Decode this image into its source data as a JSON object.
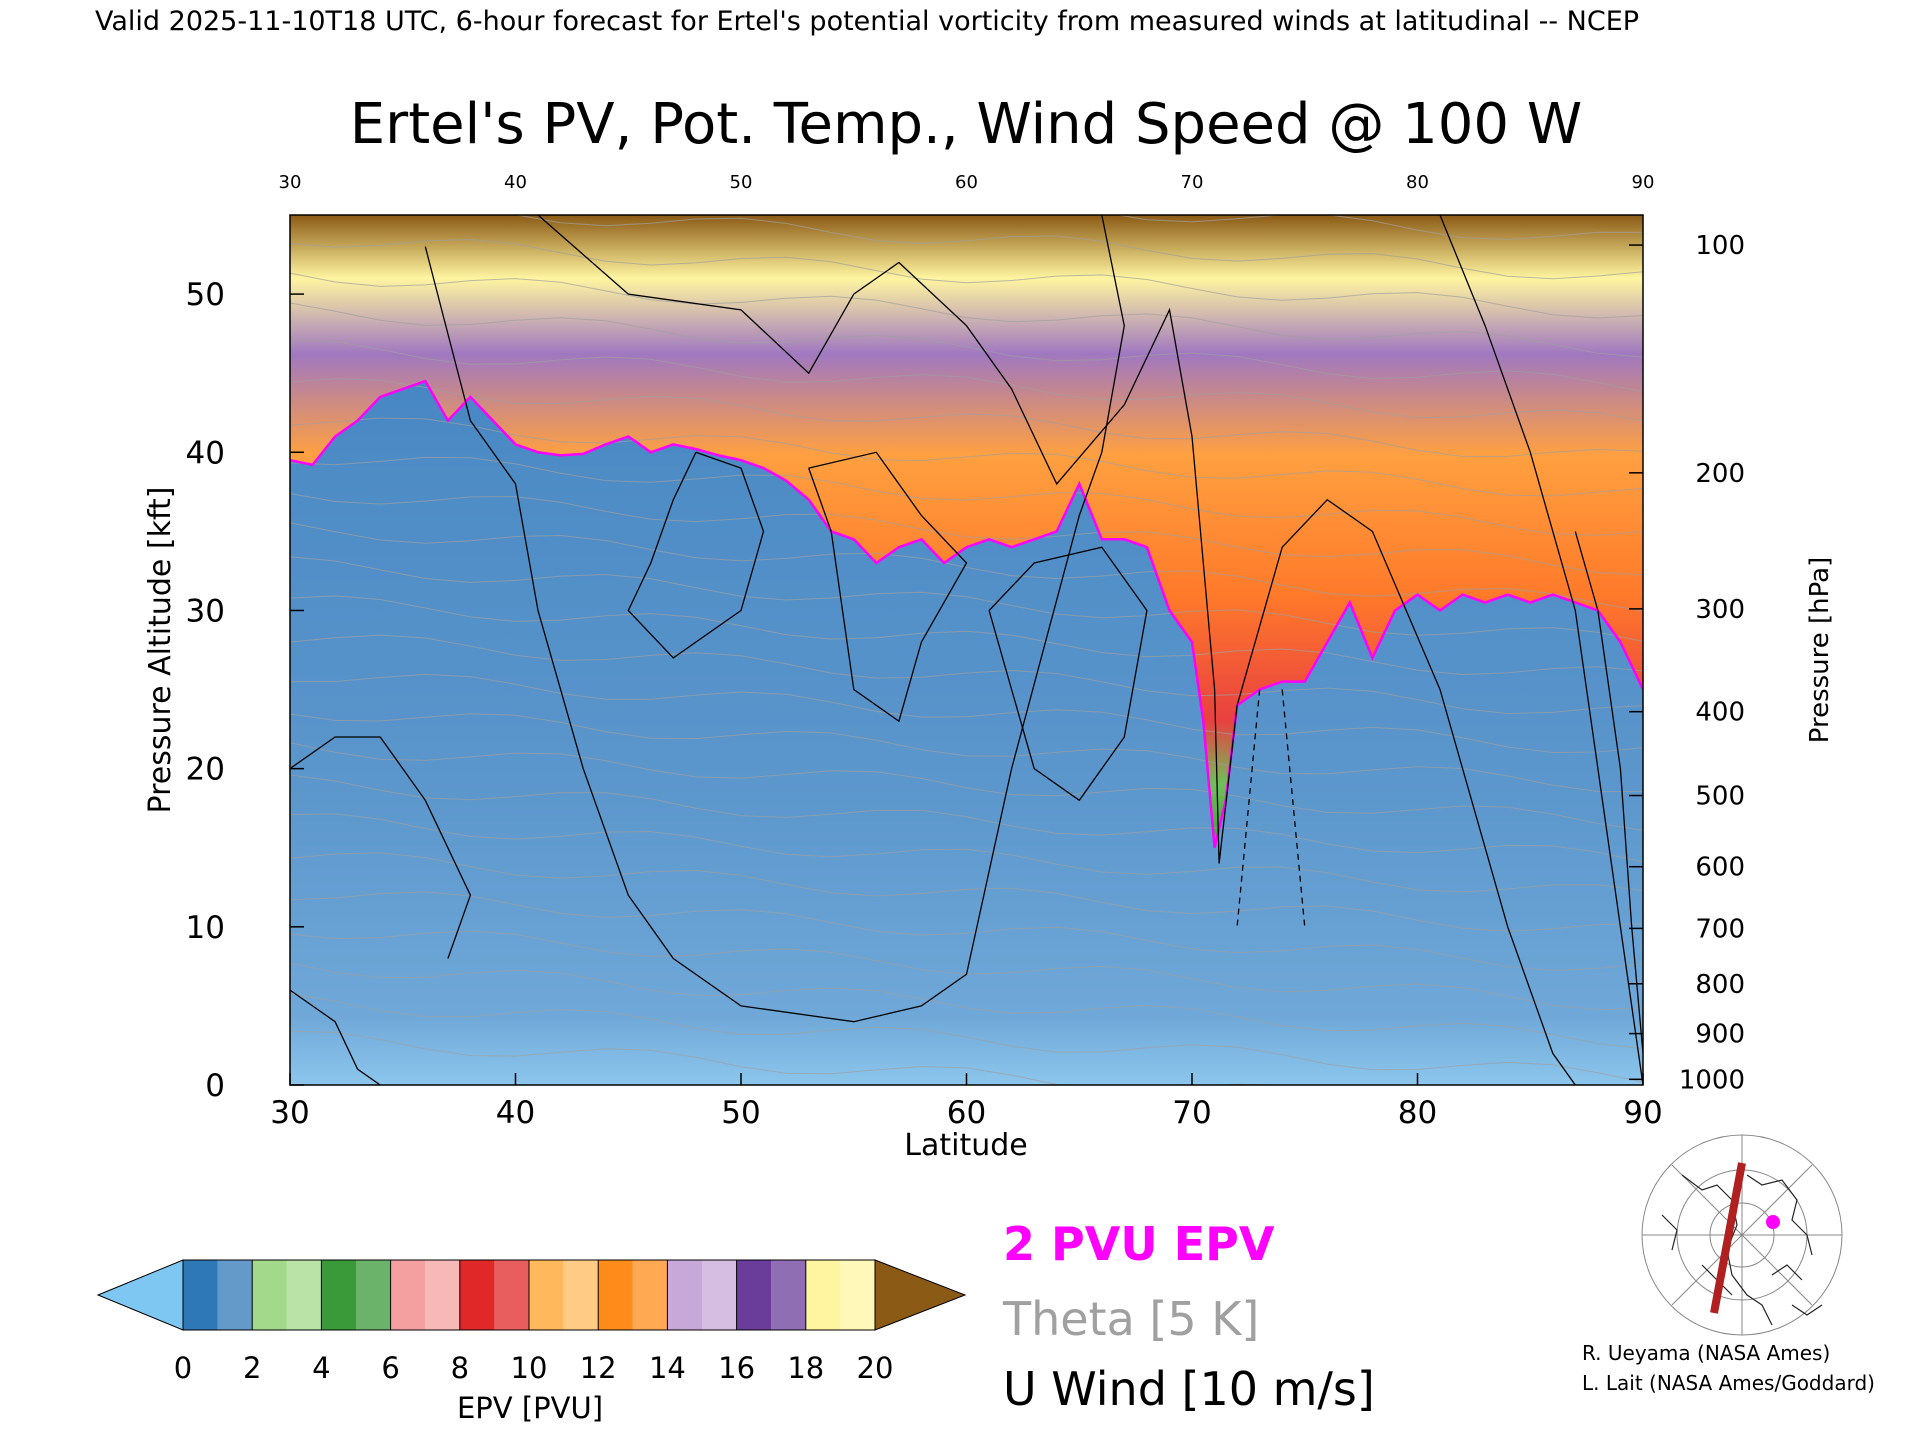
{
  "header": {
    "valid_line": "Valid 2025-11-10T18 UTC, 6-hour forecast for Ertel's potential vorticity from measured winds at latitudinal -- NCEP"
  },
  "chart_data": {
    "type": "heatmap",
    "title": "Ertel's PV, Pot. Temp., Wind Speed @ 100 W",
    "xlabel": "Latitude",
    "ylabel_left": "Pressure Altitude [kft]",
    "ylabel_right": "Pressure [hPa]",
    "xlim": [
      30,
      90
    ],
    "ylim_kft": [
      0,
      55
    ],
    "x_ticks": [
      "30",
      "40",
      "50",
      "60",
      "70",
      "80",
      "90"
    ],
    "x_ticks_top": [
      "30",
      "40",
      "50",
      "60",
      "70",
      "80",
      "90"
    ],
    "y_ticks_left": [
      "0",
      "10",
      "20",
      "30",
      "40",
      "50"
    ],
    "y_ticks_right": [
      {
        "label": "1000",
        "kft": 0.36
      },
      {
        "label": "900",
        "kft": 3.25
      },
      {
        "label": "800",
        "kft": 6.4
      },
      {
        "label": "700",
        "kft": 9.9
      },
      {
        "label": "600",
        "kft": 13.8
      },
      {
        "label": "500",
        "kft": 18.3
      },
      {
        "label": "400",
        "kft": 23.6
      },
      {
        "label": "300",
        "kft": 30.1
      },
      {
        "label": "200",
        "kft": 38.7
      },
      {
        "label": "100",
        "kft": 53.1
      }
    ],
    "pv_2pvu_boundary_kft": [
      [
        30,
        39.5
      ],
      [
        31,
        39.2
      ],
      [
        32,
        41
      ],
      [
        33,
        42
      ],
      [
        34,
        43.5
      ],
      [
        35,
        44
      ],
      [
        36,
        44.5
      ],
      [
        37,
        42
      ],
      [
        38,
        43.5
      ],
      [
        39,
        42
      ],
      [
        40,
        40.5
      ],
      [
        41,
        40
      ],
      [
        42,
        39.8
      ],
      [
        43,
        39.9
      ],
      [
        44,
        40.5
      ],
      [
        45,
        41
      ],
      [
        46,
        40
      ],
      [
        47,
        40.5
      ],
      [
        48,
        40.2
      ],
      [
        49,
        39.8
      ],
      [
        50,
        39.5
      ],
      [
        51,
        39
      ],
      [
        52,
        38.2
      ],
      [
        53,
        37
      ],
      [
        54,
        35
      ],
      [
        55,
        34.5
      ],
      [
        56,
        33
      ],
      [
        57,
        34
      ],
      [
        58,
        34.5
      ],
      [
        59,
        33
      ],
      [
        60,
        34
      ],
      [
        61,
        34.5
      ],
      [
        62,
        34
      ],
      [
        63,
        34.5
      ],
      [
        64,
        35
      ],
      [
        65,
        38
      ],
      [
        66,
        34.5
      ],
      [
        67,
        34.5
      ],
      [
        68,
        34
      ],
      [
        69,
        30
      ],
      [
        70,
        28
      ],
      [
        70.5,
        23
      ],
      [
        71,
        15
      ],
      [
        71.5,
        18
      ],
      [
        72,
        24
      ],
      [
        73,
        25
      ],
      [
        74,
        25.5
      ],
      [
        75,
        25.5
      ],
      [
        76,
        28
      ],
      [
        77,
        30.5
      ],
      [
        78,
        27
      ],
      [
        79,
        30
      ],
      [
        80,
        31
      ],
      [
        81,
        30
      ],
      [
        82,
        31
      ],
      [
        83,
        30.5
      ],
      [
        84,
        31
      ],
      [
        85,
        30.5
      ],
      [
        86,
        31
      ],
      [
        87,
        30.5
      ],
      [
        88,
        30
      ],
      [
        89,
        28
      ],
      [
        90,
        25
      ]
    ],
    "colorbar": {
      "label": "EPV [PVU]",
      "ticks": [
        "0",
        "2",
        "4",
        "6",
        "8",
        "10",
        "12",
        "14",
        "16",
        "18",
        "20"
      ],
      "colors": [
        "#7dc7f2",
        "#2f78b8",
        "#a3d98a",
        "#3a9a3a",
        "#f4a0a0",
        "#e02828",
        "#ffb95c",
        "#ff8c1a",
        "#c8a8d8",
        "#6a3d9a",
        "#fff5a0",
        "#8b5a14"
      ]
    },
    "colors": {
      "pv_contour": "#ff00ff",
      "theta_contour": "#a0a0a0",
      "wind_contour": "#000000"
    }
  },
  "legend": {
    "pv_line": "2 PVU EPV",
    "theta_line": "Theta [5 K]",
    "wind_line": "U Wind [10 m/s]"
  },
  "credits": {
    "line1": "R. Ueyama (NASA Ames)",
    "line2": "L. Lait (NASA Ames/Goddard)"
  }
}
